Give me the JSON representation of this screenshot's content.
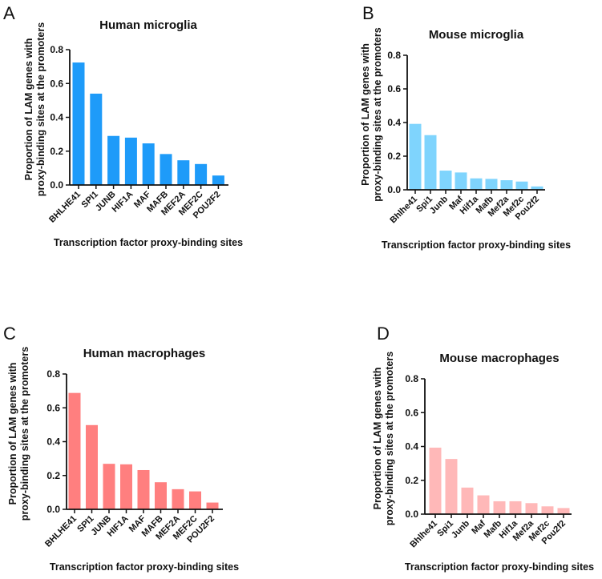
{
  "chart_data": [
    {
      "panel": "A",
      "type": "bar",
      "title": "Human microglia",
      "xlabel": "Transcription factor proxy-binding sites",
      "ylabel": [
        "Proportion of LAM genes with",
        "proxy-binding sites at the promoters"
      ],
      "ylim": [
        0,
        0.8
      ],
      "yticks": [
        "0.0",
        "0.2",
        "0.4",
        "0.6",
        "0.8"
      ],
      "categories": [
        "BHLHE41",
        "SPI1",
        "JUNB",
        "HIF1A",
        "MAF",
        "MAFB",
        "MEF2A",
        "MEF2C",
        "POU2F2"
      ],
      "values": [
        0.724,
        0.54,
        0.29,
        0.28,
        0.246,
        0.183,
        0.146,
        0.124,
        0.056
      ],
      "color": "#1e9bf9"
    },
    {
      "panel": "B",
      "type": "bar",
      "title": "Mouse microglia",
      "xlabel": "Transcription factor proxy-binding sites",
      "ylabel": [
        "Proportion of LAM genes with",
        "proxy-binding sites at the promoters"
      ],
      "ylim": [
        0,
        0.8
      ],
      "yticks": [
        "0.0",
        "0.2",
        "0.4",
        "0.6",
        "0.8"
      ],
      "categories": [
        "Bhlhe41",
        "Spi1",
        "Junb",
        "Maf",
        "Hif1a",
        "Mafb",
        "Mef2a",
        "Mef2c",
        "Pou2f2"
      ],
      "values": [
        0.392,
        0.325,
        0.114,
        0.103,
        0.068,
        0.065,
        0.057,
        0.049,
        0.02
      ],
      "color": "#7fd4fd"
    },
    {
      "panel": "C",
      "type": "bar",
      "title": "Human macrophages",
      "xlabel": "Transcription factor proxy-binding sites",
      "ylabel": [
        "Proportion of LAM genes with",
        "proxy-binding sites at the promoters"
      ],
      "ylim": [
        0,
        0.8
      ],
      "yticks": [
        "0.0",
        "0.2",
        "0.4",
        "0.6",
        "0.8"
      ],
      "categories": [
        "BHLHE41",
        "SPI1",
        "JUNB",
        "HIF1A",
        "MAF",
        "MAFB",
        "MEF2A",
        "MEF2C",
        "POU2F2"
      ],
      "values": [
        0.688,
        0.498,
        0.269,
        0.266,
        0.232,
        0.16,
        0.119,
        0.106,
        0.04
      ],
      "color": "#ff7f7f"
    },
    {
      "panel": "D",
      "type": "bar",
      "title": "Mouse macrophages",
      "xlabel": "Transcription factor proxy-binding sites",
      "ylabel": [
        "Proportion of LAM genes with",
        "proxy-binding sites at the promoters"
      ],
      "ylim": [
        0,
        0.8
      ],
      "yticks": [
        "0.0",
        "0.2",
        "0.4",
        "0.6",
        "0.8"
      ],
      "categories": [
        "Bhlhe41",
        "Spi1",
        "Junb",
        "Maf",
        "Mafb",
        "Hif1a",
        "Mef2a",
        "Mef2c",
        "Pou2f2"
      ],
      "values": [
        0.393,
        0.326,
        0.157,
        0.111,
        0.076,
        0.076,
        0.065,
        0.046,
        0.036
      ],
      "color": "#ffb8b8"
    }
  ]
}
